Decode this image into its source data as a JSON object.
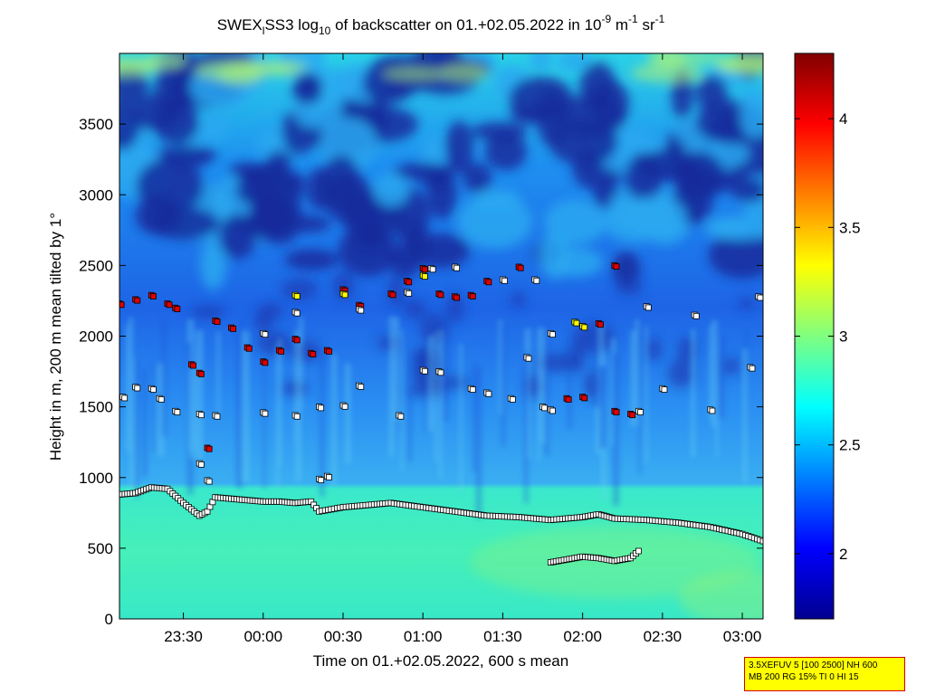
{
  "chart_data": {
    "type": "heatmap",
    "title_parts": {
      "a": "SWEX",
      "sub1": "l",
      "b": "SS3 log",
      "sub2": "10",
      "c": " of backscatter on 01.+02.05.2022 in 10",
      "sup1": "-9",
      "d": " m",
      "sup2": "-1",
      "e": " sr",
      "sup3": "-1"
    },
    "xlabel": "Time on 01.+02.05.2022, 600 s mean",
    "ylabel": "Height in m, 200 m mean tilted by 1°",
    "x_range_hours": [
      23.1,
      27.13
    ],
    "ylim": [
      0,
      4000
    ],
    "x_ticks": [
      {
        "h": 23.5,
        "label": "23:30"
      },
      {
        "h": 24.0,
        "label": "00:00"
      },
      {
        "h": 24.5,
        "label": "00:30"
      },
      {
        "h": 25.0,
        "label": "01:00"
      },
      {
        "h": 25.5,
        "label": "01:30"
      },
      {
        "h": 26.0,
        "label": "02:00"
      },
      {
        "h": 26.5,
        "label": "02:30"
      },
      {
        "h": 27.0,
        "label": "03:00"
      }
    ],
    "y_ticks": [
      {
        "v": 0,
        "label": "0"
      },
      {
        "v": 500,
        "label": "500"
      },
      {
        "v": 1000,
        "label": "1000"
      },
      {
        "v": 1500,
        "label": "1500"
      },
      {
        "v": 2000,
        "label": "2000"
      },
      {
        "v": 2500,
        "label": "2500"
      },
      {
        "v": 3000,
        "label": "3000"
      },
      {
        "v": 3500,
        "label": "3500"
      }
    ],
    "colorbar": {
      "range": [
        1.7,
        4.3
      ],
      "ticks": [
        {
          "v": 2.0,
          "label": "2"
        },
        {
          "v": 2.5,
          "label": "2.5"
        },
        {
          "v": 3.0,
          "label": "3"
        },
        {
          "v": 3.5,
          "label": "3.5"
        },
        {
          "v": 4.0,
          "label": "4"
        }
      ],
      "colormap": "jet"
    },
    "mixing_layer": {
      "name": "boundary layer (black squares)",
      "points": [
        [
          23.1,
          880
        ],
        [
          23.2,
          890
        ],
        [
          23.3,
          930
        ],
        [
          23.4,
          920
        ],
        [
          23.5,
          820
        ],
        [
          23.6,
          730
        ],
        [
          23.65,
          760
        ],
        [
          23.7,
          860
        ],
        [
          23.8,
          850
        ],
        [
          23.9,
          840
        ],
        [
          24.0,
          830
        ],
        [
          24.1,
          830
        ],
        [
          24.2,
          820
        ],
        [
          24.3,
          830
        ],
        [
          24.35,
          760
        ],
        [
          24.5,
          790
        ],
        [
          24.8,
          820
        ],
        [
          25.0,
          790
        ],
        [
          25.2,
          760
        ],
        [
          25.4,
          730
        ],
        [
          25.6,
          720
        ],
        [
          25.8,
          700
        ],
        [
          26.0,
          720
        ],
        [
          26.1,
          740
        ],
        [
          26.2,
          710
        ],
        [
          26.4,
          700
        ],
        [
          26.6,
          680
        ],
        [
          26.8,
          650
        ],
        [
          27.0,
          600
        ],
        [
          27.13,
          550
        ]
      ]
    },
    "lower_layer": {
      "points": [
        [
          25.8,
          400
        ],
        [
          25.9,
          420
        ],
        [
          26.0,
          440
        ],
        [
          26.1,
          430
        ],
        [
          26.2,
          410
        ],
        [
          26.3,
          430
        ],
        [
          26.35,
          480
        ]
      ]
    },
    "aerosol_layers": [
      {
        "style": "white",
        "points": [
          [
            23.12,
            1570
          ],
          [
            23.2,
            1640
          ],
          [
            23.3,
            1630
          ],
          [
            23.35,
            1560
          ],
          [
            23.45,
            1470
          ],
          [
            23.6,
            1450
          ],
          [
            23.7,
            1440
          ],
          [
            24.0,
            1460
          ],
          [
            24.2,
            1440
          ],
          [
            24.35,
            1500
          ],
          [
            24.5,
            1510
          ],
          [
            24.6,
            1650
          ],
          [
            24.85,
            1440
          ],
          [
            25.0,
            1760
          ],
          [
            25.1,
            1750
          ],
          [
            25.3,
            1630
          ],
          [
            25.4,
            1600
          ],
          [
            25.55,
            1560
          ],
          [
            25.75,
            1500
          ],
          [
            25.8,
            1480
          ],
          [
            26.35,
            1470
          ],
          [
            26.5,
            1630
          ],
          [
            26.8,
            1480
          ]
        ]
      },
      {
        "style": "red",
        "points": [
          [
            23.1,
            2230
          ],
          [
            23.2,
            2260
          ],
          [
            23.3,
            2290
          ],
          [
            23.4,
            2230
          ],
          [
            23.45,
            2200
          ],
          [
            23.55,
            1800
          ],
          [
            23.6,
            1740
          ],
          [
            23.65,
            1210
          ],
          [
            23.7,
            2110
          ],
          [
            23.8,
            2060
          ],
          [
            23.9,
            1920
          ],
          [
            24.0,
            1820
          ],
          [
            24.1,
            1900
          ],
          [
            24.2,
            1980
          ],
          [
            24.3,
            1880
          ],
          [
            24.4,
            1900
          ],
          [
            24.5,
            2330
          ],
          [
            24.6,
            2220
          ],
          [
            24.8,
            2300
          ],
          [
            24.9,
            2390
          ],
          [
            25.0,
            2480
          ],
          [
            25.1,
            2300
          ],
          [
            25.2,
            2280
          ],
          [
            25.3,
            2290
          ],
          [
            25.4,
            2390
          ],
          [
            25.6,
            2490
          ],
          [
            25.9,
            1560
          ],
          [
            26.0,
            1570
          ],
          [
            26.2,
            1470
          ],
          [
            26.3,
            1450
          ],
          [
            26.1,
            2090
          ],
          [
            26.2,
            2500
          ]
        ]
      },
      {
        "style": "yellow",
        "points": [
          [
            24.2,
            2290
          ],
          [
            24.5,
            2300
          ],
          [
            25.0,
            2430
          ],
          [
            25.95,
            2100
          ],
          [
            26.0,
            2070
          ]
        ]
      },
      {
        "style": "white",
        "points": [
          [
            24.0,
            2020
          ],
          [
            24.2,
            2170
          ],
          [
            24.6,
            2190
          ],
          [
            24.9,
            2310
          ],
          [
            25.05,
            2480
          ],
          [
            25.2,
            2490
          ],
          [
            25.5,
            2400
          ],
          [
            25.7,
            2400
          ],
          [
            25.8,
            2020
          ],
          [
            26.4,
            2210
          ],
          [
            26.7,
            2150
          ],
          [
            27.1,
            2280
          ],
          [
            27.05,
            1780
          ],
          [
            23.6,
            1100
          ],
          [
            23.65,
            980
          ],
          [
            24.35,
            990
          ],
          [
            24.4,
            1010
          ],
          [
            25.65,
            1850
          ]
        ]
      }
    ]
  },
  "info_box": {
    "line1": "3.5XEFUV 5 [100 2500] NH 600",
    "line2": "MB 200 RG 15% TI 0 HI 15"
  }
}
